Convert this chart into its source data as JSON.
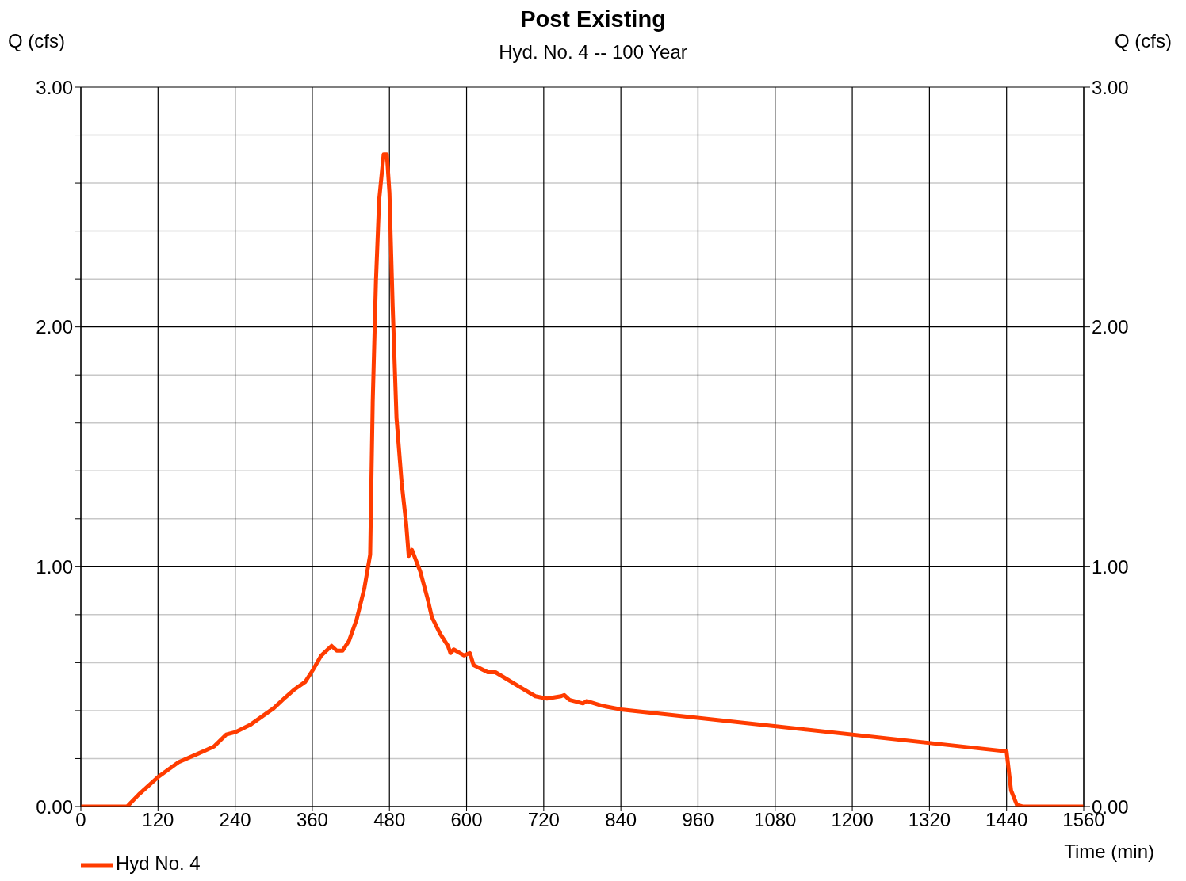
{
  "chart_data": {
    "type": "line",
    "title": "Post Existing",
    "subtitle": "Hyd. No. 4 -- 100 Year",
    "xlabel": "Time (min)",
    "ylabel": "Q (cfs)",
    "y2label": "Q (cfs)",
    "series": [
      {
        "name": "Hyd No. 4",
        "color": "#ff3c00",
        "x": [
          0,
          72,
          90,
          121,
          152,
          182,
          207,
          226,
          240,
          263,
          300,
          318,
          333,
          349,
          361,
          374,
          390,
          398,
          407,
          417,
          429,
          441,
          450,
          454,
          459,
          464,
          471,
          476,
          480,
          485,
          491,
          499,
          506,
          510,
          515,
          528,
          540,
          546,
          559,
          571,
          575,
          580,
          596,
          605,
          611,
          633,
          645,
          688,
          707,
          725,
          747,
          752,
          760,
          781,
          787,
          811,
          840,
          1440,
          1447,
          1456,
          1465,
          1560
        ],
        "values": [
          0,
          0,
          0.05,
          0.125,
          0.185,
          0.22,
          0.25,
          0.3,
          0.31,
          0.34,
          0.41,
          0.455,
          0.49,
          0.52,
          0.57,
          0.63,
          0.67,
          0.65,
          0.65,
          0.69,
          0.78,
          0.91,
          1.05,
          1.69,
          2.19,
          2.53,
          2.72,
          2.72,
          2.56,
          2.09,
          1.62,
          1.35,
          1.18,
          1.045,
          1.07,
          0.98,
          0.86,
          0.79,
          0.72,
          0.67,
          0.64,
          0.655,
          0.63,
          0.64,
          0.59,
          0.56,
          0.56,
          0.49,
          0.46,
          0.45,
          0.46,
          0.465,
          0.445,
          0.43,
          0.44,
          0.42,
          0.405,
          0.23,
          0.067,
          0.007,
          0,
          0
        ]
      }
    ],
    "xlim": [
      0,
      1560
    ],
    "xticks": [
      0,
      120,
      240,
      360,
      480,
      600,
      720,
      840,
      960,
      1080,
      1200,
      1320,
      1440,
      1560
    ],
    "ylim": [
      0,
      3
    ],
    "yticks": [
      {
        "value": 0,
        "label": "0.00"
      },
      {
        "value": 0.2,
        "label": null
      },
      {
        "value": 0.4,
        "label": null
      },
      {
        "value": 0.6,
        "label": null
      },
      {
        "value": 0.8,
        "label": null
      },
      {
        "value": 1,
        "label": "1.00"
      },
      {
        "value": 1.2,
        "label": null
      },
      {
        "value": 1.4,
        "label": null
      },
      {
        "value": 1.6,
        "label": null
      },
      {
        "value": 1.8,
        "label": null
      },
      {
        "value": 2,
        "label": "2.00"
      },
      {
        "value": 2.2,
        "label": null
      },
      {
        "value": 2.4,
        "label": null
      },
      {
        "value": 2.6,
        "label": null
      },
      {
        "value": 2.8,
        "label": null
      },
      {
        "value": 3,
        "label": "3.00"
      }
    ],
    "y2lim": [
      0,
      3
    ],
    "y2ticks": [
      {
        "value": 0,
        "label": "0.00"
      },
      {
        "value": 1,
        "label": "1.00"
      },
      {
        "value": 2,
        "label": "2.00"
      },
      {
        "value": 3,
        "label": "3.00"
      }
    ],
    "grid": true,
    "legend": "bottom left",
    "marker": "none",
    "line_style": "solid"
  }
}
